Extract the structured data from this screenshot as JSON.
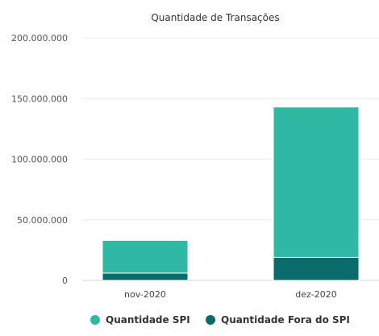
{
  "chart_data": {
    "type": "bar",
    "stacked": true,
    "title": "Quantidade de Transações",
    "xlabel": "",
    "ylabel": "",
    "categories": [
      "nov-2020",
      "dez-2020"
    ],
    "ylim": [
      0,
      200000000
    ],
    "y_ticks": [
      0,
      50000000,
      100000000,
      150000000,
      200000000
    ],
    "y_tick_labels": [
      "0",
      "50.000.000",
      "100.000.000",
      "150.000.000",
      "200.000.000"
    ],
    "grid": true,
    "legend_position": "bottom-center",
    "series": [
      {
        "name": "Quantidade Fora do SPI",
        "color": "#0b6b6b",
        "values": [
          6000000,
          19000000
        ]
      },
      {
        "name": "Quantidade SPI",
        "color": "#2fb8a4",
        "values": [
          27000000,
          124000000
        ]
      }
    ]
  }
}
